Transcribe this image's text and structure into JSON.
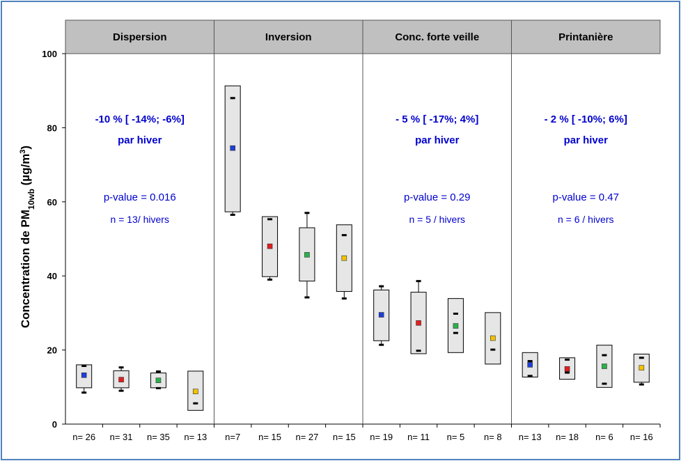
{
  "chart_data": {
    "type": "box",
    "ylim": [
      0,
      100
    ],
    "yticks": [
      0,
      20,
      40,
      60,
      80,
      100
    ],
    "ylabel": {
      "prefix": "Concentration  de PM",
      "sub": "10wb",
      "unit_open": " (µg/m",
      "sup": "3",
      "unit_close": ")"
    },
    "grid": false,
    "colors": {
      "blue": "#1f3fd6",
      "red": "#e02020",
      "green": "#2bb04a",
      "yellow": "#f2c200",
      "header_bg": "#c0c0c0",
      "box_fill": "#e6e6e6",
      "annotation": "#0000cc"
    },
    "panels": [
      {
        "title": "Dispersion",
        "annotation": {
          "trend": "-10 % [ -14%; -6%]",
          "per": "par hiver",
          "pvalue": "p-value = 0.016",
          "n": "n = 13/ hivers"
        },
        "boxes": [
          {
            "n_label": "n= 26",
            "color": "blue",
            "median": 13.2,
            "q1": 9.8,
            "q3": 16.0,
            "p10": 8.5,
            "p90": 15.7
          },
          {
            "n_label": "n= 31",
            "color": "red",
            "median": 12.0,
            "q1": 9.8,
            "q3": 14.4,
            "p10": 9.0,
            "p90": 15.3
          },
          {
            "n_label": "n= 35",
            "color": "green",
            "median": 11.8,
            "q1": 9.8,
            "q3": 13.8,
            "p10": 9.7,
            "p90": 14.2
          },
          {
            "n_label": "n= 13",
            "color": "yellow",
            "median": 8.8,
            "q1": 3.7,
            "q3": 14.3,
            "p10": 5.6,
            "p90": null
          }
        ]
      },
      {
        "title": "Inversion",
        "annotation": null,
        "boxes": [
          {
            "n_label": "n=7",
            "color": "blue",
            "median": 74.5,
            "q1": 57.3,
            "q3": 91.3,
            "p10": 56.5,
            "p90": 88.0
          },
          {
            "n_label": "n= 15",
            "color": "red",
            "median": 48.0,
            "q1": 39.8,
            "q3": 56.0,
            "p10": 39.0,
            "p90": 55.3
          },
          {
            "n_label": "n= 27",
            "color": "green",
            "median": 45.7,
            "q1": 38.6,
            "q3": 53.0,
            "p10": 34.2,
            "p90": 57.0
          },
          {
            "n_label": "n= 15",
            "color": "yellow",
            "median": 44.8,
            "q1": 35.8,
            "q3": 53.8,
            "p10": 33.9,
            "p90": 51.0
          }
        ]
      },
      {
        "title": "Conc. forte veille",
        "annotation": {
          "trend": "- 5 % [ -17%; 4%]",
          "per": "par hiver",
          "pvalue": "p-value = 0.29",
          "n": "n = 5 / hivers"
        },
        "boxes": [
          {
            "n_label": "n= 19",
            "color": "blue",
            "median": 29.5,
            "q1": 22.5,
            "q3": 36.2,
            "p10": 21.4,
            "p90": 37.2
          },
          {
            "n_label": "n= 11",
            "color": "red",
            "median": 27.3,
            "q1": 19.0,
            "q3": 35.6,
            "p10": 19.8,
            "p90": 38.6
          },
          {
            "n_label": "n= 5",
            "color": "green",
            "median": 26.5,
            "q1": 19.3,
            "q3": 33.9,
            "p10": 24.6,
            "p90": 29.8
          },
          {
            "n_label": "n= 8",
            "color": "yellow",
            "median": 23.2,
            "q1": 16.2,
            "q3": 30.1,
            "p10": 20.1,
            "p90": null
          }
        ]
      },
      {
        "title": "Printanière",
        "annotation": {
          "trend": "- 2 % [ -10%; 6%]",
          "per": "par hiver",
          "pvalue": "p-value = 0.47",
          "n": "n = 6 / hivers"
        },
        "boxes": [
          {
            "n_label": "n= 13",
            "color": "blue",
            "median": 16.0,
            "q1": 12.7,
            "q3": 19.3,
            "p10": 13.0,
            "p90": 17.0
          },
          {
            "n_label": "n= 18",
            "color": "red",
            "median": 14.9,
            "q1": 12.1,
            "q3": 17.9,
            "p10": 13.9,
            "p90": 17.4
          },
          {
            "n_label": "n= 6",
            "color": "green",
            "median": 15.6,
            "q1": 9.9,
            "q3": 21.3,
            "p10": 10.9,
            "p90": 18.6
          },
          {
            "n_label": "n= 16",
            "color": "yellow",
            "median": 15.2,
            "q1": 11.3,
            "q3": 18.9,
            "p10": 10.7,
            "p90": 17.9
          }
        ]
      }
    ]
  }
}
